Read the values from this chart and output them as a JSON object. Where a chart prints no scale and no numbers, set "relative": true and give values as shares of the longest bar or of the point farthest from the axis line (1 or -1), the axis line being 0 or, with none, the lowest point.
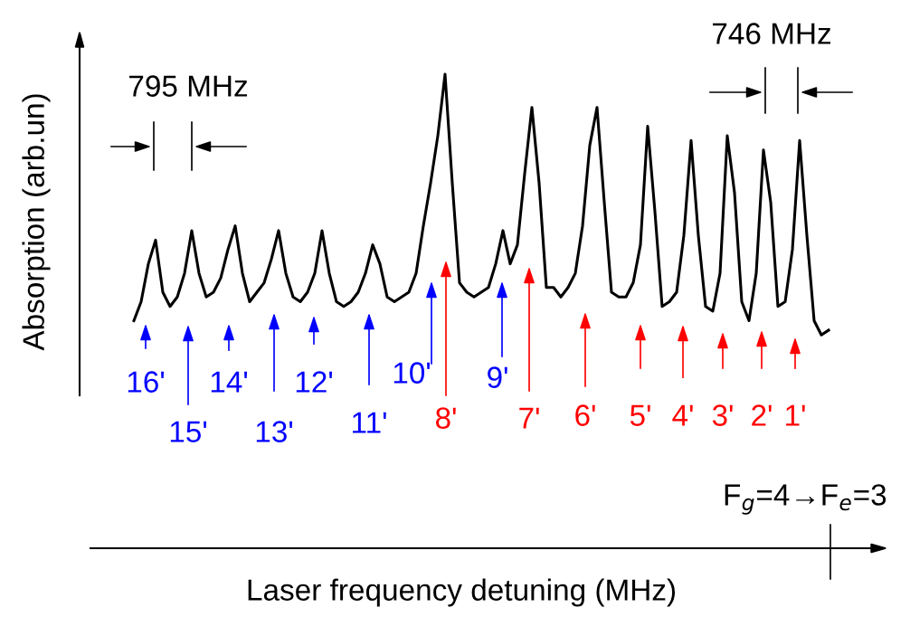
{
  "chart_data": {
    "type": "line",
    "relative": true,
    "xlabel": "Laser frequency detuning (MHz)",
    "ylabel": "Absorption (arb.un)",
    "categories": [
      null,
      null,
      null,
      null,
      null,
      null,
      null,
      null,
      null,
      null,
      null,
      null,
      null,
      null,
      null,
      null,
      null,
      null,
      null,
      null,
      null,
      null,
      null,
      null,
      null,
      null,
      null,
      null,
      null,
      null,
      null,
      null,
      null,
      null,
      null,
      null,
      null,
      null,
      null,
      null,
      null,
      null,
      null,
      null,
      null,
      null,
      null,
      null,
      null,
      null,
      null,
      null,
      null,
      null,
      null,
      null,
      null,
      null,
      null,
      null,
      null,
      null,
      null,
      null,
      null,
      null,
      null,
      null,
      null,
      null,
      null,
      null,
      null,
      null,
      null,
      null,
      null,
      null,
      null,
      null,
      null,
      null,
      null,
      null,
      null,
      null,
      null,
      null,
      null,
      null,
      null,
      null,
      null,
      null,
      null,
      null,
      null
    ],
    "series": [
      {
        "color": "#000000",
        "values": [
          0.48,
          0.52,
          0.6,
          0.65,
          0.54,
          0.51,
          0.53,
          0.58,
          0.67,
          0.58,
          0.53,
          0.54,
          0.57,
          0.63,
          0.68,
          0.58,
          0.52,
          0.54,
          0.56,
          0.61,
          0.67,
          0.58,
          0.53,
          0.52,
          0.54,
          0.58,
          0.67,
          0.58,
          0.52,
          0.51,
          0.52,
          0.54,
          0.58,
          0.64,
          0.6,
          0.53,
          0.52,
          0.53,
          0.54,
          0.58,
          0.68,
          0.77,
          0.87,
          1.0,
          0.77,
          0.56,
          0.54,
          0.53,
          0.54,
          0.55,
          0.6,
          0.67,
          0.6,
          0.64,
          0.79,
          0.93,
          0.77,
          0.55,
          0.55,
          0.53,
          0.55,
          0.58,
          0.68,
          0.85,
          0.93,
          0.73,
          0.54,
          0.53,
          0.53,
          0.56,
          0.64,
          0.89,
          0.71,
          0.51,
          0.52,
          0.54,
          0.66,
          0.86,
          0.66,
          0.51,
          0.5,
          0.58,
          0.87,
          0.75,
          0.52,
          0.48,
          0.58,
          0.84,
          0.73,
          0.51,
          0.52,
          0.63,
          0.86,
          0.66,
          0.48,
          0.45,
          0.46
        ]
      }
    ],
    "annotations": [
      "16'",
      "15'",
      "14'",
      "13'",
      "12'",
      "11'",
      "10'",
      "8'",
      "9'",
      "7'",
      "6'",
      "5'",
      "4'",
      "3'",
      "2'",
      "1'",
      "795 MHz",
      "746 MHz",
      "F$_{g}$=4→F$_{e}$=3"
    ]
  }
}
